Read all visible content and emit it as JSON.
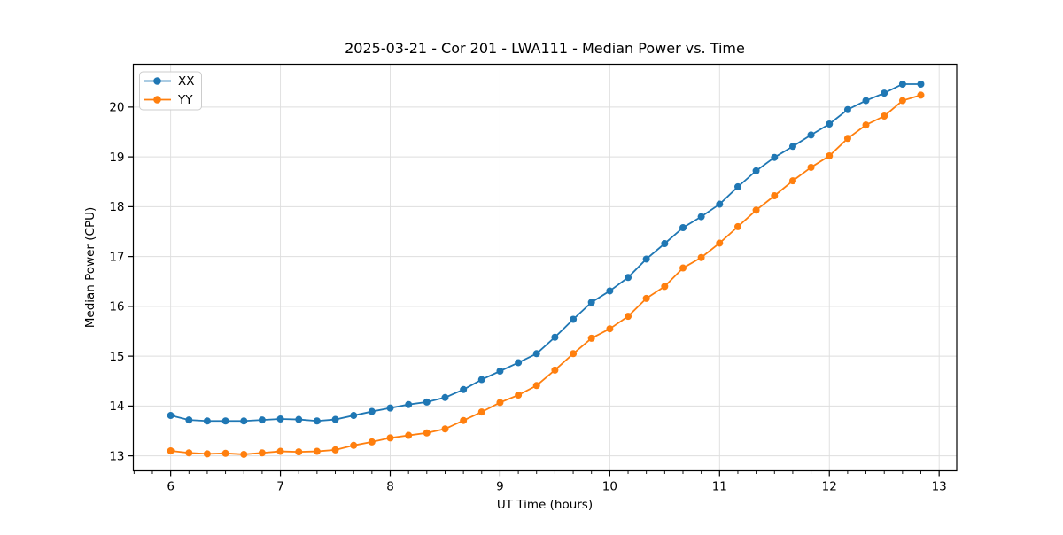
{
  "chart_data": {
    "type": "line",
    "title": "2025-03-21 - Cor 201 - LWA111 - Median Power vs. Time",
    "xlabel": "UT Time (hours)",
    "ylabel": "Median Power (CPU)",
    "xlim": [
      5.66,
      13.16
    ],
    "ylim": [
      12.7,
      20.86
    ],
    "x_ticks": [
      6,
      7,
      8,
      9,
      10,
      11,
      12,
      13
    ],
    "y_ticks": [
      13,
      14,
      15,
      16,
      17,
      18,
      19,
      20
    ],
    "x_minor_divisions": 6,
    "grid": true,
    "grid_color": "#dedede",
    "legend_position": "upper left",
    "x": [
      6.0,
      6.167,
      6.333,
      6.5,
      6.667,
      6.833,
      7.0,
      7.167,
      7.333,
      7.5,
      7.667,
      7.833,
      8.0,
      8.167,
      8.333,
      8.5,
      8.667,
      8.833,
      9.0,
      9.167,
      9.333,
      9.5,
      9.667,
      9.833,
      10.0,
      10.167,
      10.333,
      10.5,
      10.667,
      10.833,
      11.0,
      11.167,
      11.333,
      11.5,
      11.667,
      11.833,
      12.0,
      12.167,
      12.333,
      12.5,
      12.667,
      12.833
    ],
    "series": [
      {
        "name": "XX",
        "color": "#1f77b4",
        "values": [
          13.81,
          13.72,
          13.7,
          13.7,
          13.7,
          13.72,
          13.74,
          13.73,
          13.7,
          13.73,
          13.81,
          13.89,
          13.96,
          14.03,
          14.08,
          14.17,
          14.33,
          14.53,
          14.7,
          14.87,
          15.05,
          15.38,
          15.74,
          16.08,
          16.31,
          16.58,
          16.95,
          17.26,
          17.58,
          17.8,
          18.05,
          18.4,
          18.72,
          18.99,
          19.21,
          19.44,
          19.66,
          19.95,
          20.13,
          20.28,
          20.46,
          20.46
        ]
      },
      {
        "name": "YY",
        "color": "#ff7f0e",
        "values": [
          13.1,
          13.06,
          13.04,
          13.05,
          13.03,
          13.06,
          13.09,
          13.08,
          13.09,
          13.12,
          13.21,
          13.28,
          13.36,
          13.41,
          13.46,
          13.54,
          13.71,
          13.88,
          14.07,
          14.22,
          14.41,
          14.72,
          15.05,
          15.36,
          15.55,
          15.8,
          16.16,
          16.4,
          16.77,
          16.98,
          17.27,
          17.6,
          17.93,
          18.22,
          18.52,
          18.79,
          19.02,
          19.37,
          19.64,
          19.82,
          20.13,
          20.24
        ]
      }
    ]
  }
}
